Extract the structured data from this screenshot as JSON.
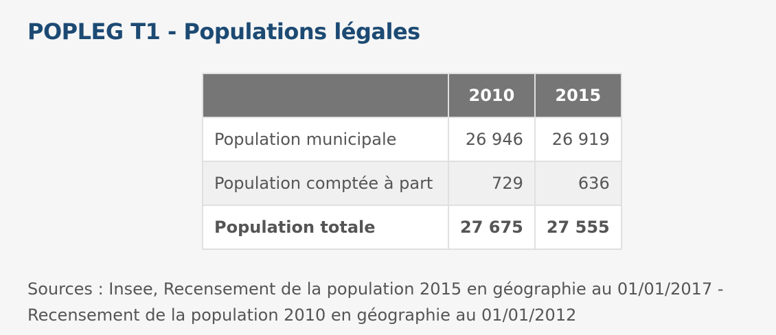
{
  "title": "POPLEG T1 - Populations légales",
  "table": {
    "columns": [
      "2010",
      "2015"
    ],
    "rows": [
      {
        "label": "Population municipale",
        "values": [
          "26 946",
          "26 919"
        ]
      },
      {
        "label": "Population comptée à part",
        "values": [
          "729",
          "636"
        ]
      },
      {
        "label": "Population totale",
        "values": [
          "27 675",
          "27 555"
        ]
      }
    ]
  },
  "source": {
    "line1": "Sources : Insee, Recensement de la population 2015 en géographie au 01/01/2017 -",
    "line2": "Recensement de la population 2010 en géographie au 01/01/2012"
  },
  "colors": {
    "title": "#1c4a73",
    "header_bg": "#767676",
    "text": "#555555",
    "page_bg": "#f6f6f6"
  }
}
